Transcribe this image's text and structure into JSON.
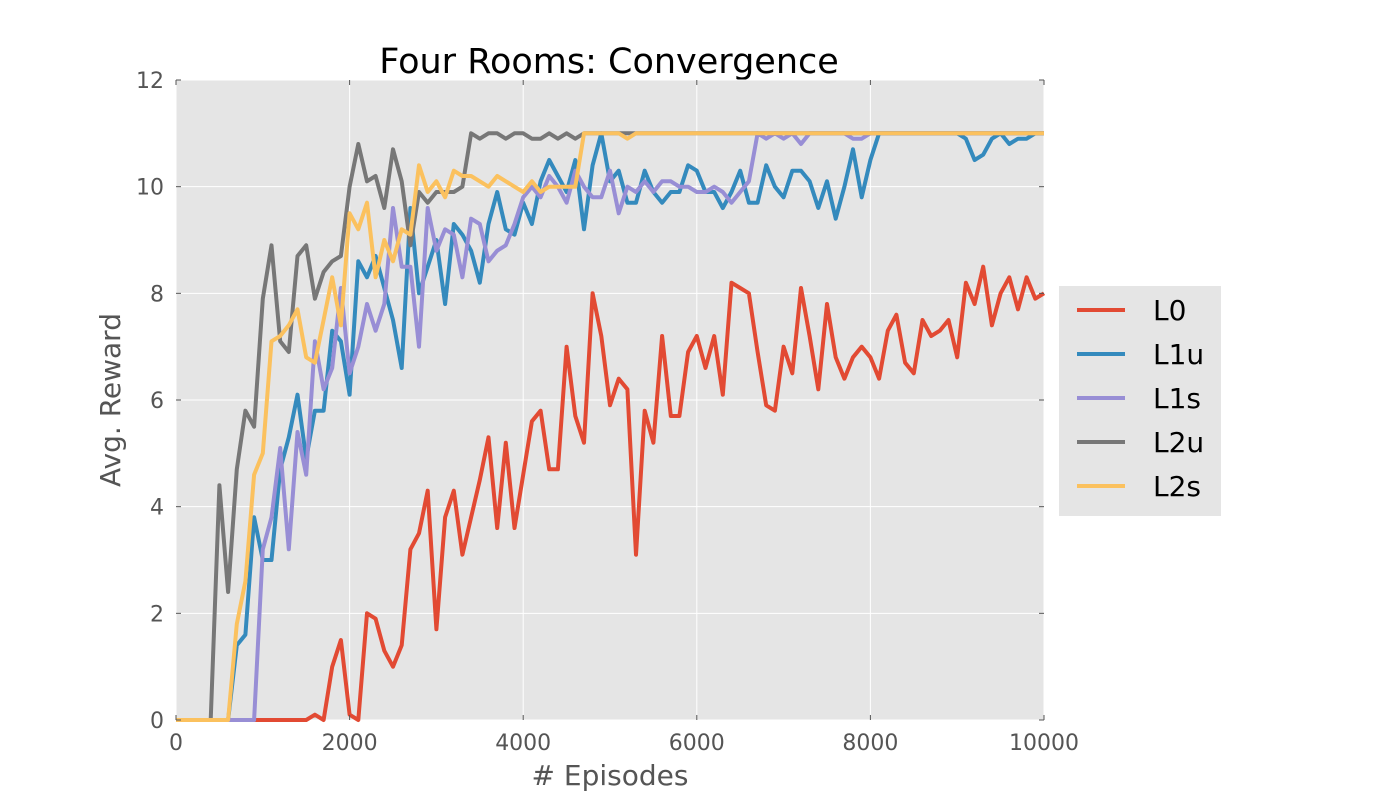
{
  "chart_data": {
    "type": "line",
    "title": "Four Rooms: Convergence",
    "xlabel": "# Episodes",
    "ylabel": "Avg. Reward",
    "xlim": [
      0,
      10000
    ],
    "ylim": [
      0,
      12
    ],
    "xticks": [
      0,
      2000,
      4000,
      6000,
      8000,
      10000
    ],
    "yticks": [
      0,
      2,
      4,
      6,
      8,
      10,
      12
    ],
    "grid": true,
    "legend_position": "center-right, outside plot",
    "x": [
      0,
      100,
      200,
      300,
      400,
      500,
      600,
      700,
      800,
      900,
      1000,
      1100,
      1200,
      1300,
      1400,
      1500,
      1600,
      1700,
      1800,
      1900,
      2000,
      2100,
      2200,
      2300,
      2400,
      2500,
      2600,
      2700,
      2800,
      2900,
      3000,
      3100,
      3200,
      3300,
      3400,
      3500,
      3600,
      3700,
      3800,
      3900,
      4000,
      4100,
      4200,
      4300,
      4400,
      4500,
      4600,
      4700,
      4800,
      4900,
      5000,
      5100,
      5200,
      5300,
      5400,
      5500,
      5600,
      5700,
      5800,
      5900,
      6000,
      6100,
      6200,
      6300,
      6400,
      6500,
      6600,
      6700,
      6800,
      6900,
      7000,
      7100,
      7200,
      7300,
      7400,
      7500,
      7600,
      7700,
      7800,
      7900,
      8000,
      8100,
      8200,
      8300,
      8400,
      8500,
      8600,
      8700,
      8800,
      8900,
      9000,
      9100,
      9200,
      9300,
      9400,
      9500,
      9600,
      9700,
      9800,
      9900,
      10000
    ],
    "series": [
      {
        "name": "L0",
        "color": "#e24a33",
        "values": [
          0,
          0,
          0,
          0,
          0,
          0,
          0,
          0,
          0,
          0,
          0,
          0,
          0,
          0,
          0,
          0,
          0.1,
          0,
          1,
          1.5,
          0.1,
          0,
          2,
          1.9,
          1.3,
          1,
          1.4,
          3.2,
          3.5,
          4.3,
          1.7,
          3.8,
          4.3,
          3.1,
          3.8,
          4.5,
          5.3,
          3.6,
          5.2,
          3.6,
          4.6,
          5.6,
          5.8,
          4.7,
          4.7,
          7,
          5.7,
          5.2,
          8,
          7.2,
          5.9,
          6.4,
          6.2,
          3.1,
          5.8,
          5.2,
          7.2,
          5.7,
          5.7,
          6.9,
          7.2,
          6.6,
          7.2,
          6.1,
          8.2,
          8.1,
          8,
          6.9,
          5.9,
          5.8,
          7,
          6.5,
          8.1,
          7.2,
          6.2,
          7.8,
          6.8,
          6.4,
          6.8,
          7,
          6.8,
          6.4,
          7.3,
          7.6,
          6.7,
          6.5,
          7.5,
          7.2,
          7.3,
          7.5,
          6.8,
          8.2,
          7.8,
          8.5,
          7.4,
          8,
          8.3,
          7.7,
          8.3,
          7.9,
          8
        ]
      },
      {
        "name": "L1u",
        "color": "#348abd",
        "values": [
          0,
          0,
          0,
          0,
          0,
          0,
          0,
          1.4,
          1.6,
          3.8,
          3,
          3,
          4.7,
          5.3,
          6.1,
          4.9,
          5.8,
          5.8,
          7.3,
          7.1,
          6.1,
          8.6,
          8.3,
          8.7,
          8.1,
          7.5,
          6.6,
          9.6,
          8,
          8.5,
          9,
          7.8,
          9.3,
          9.1,
          8.8,
          8.2,
          9.3,
          9.9,
          9.2,
          9.1,
          9.7,
          9.3,
          10.1,
          10.5,
          10.2,
          9.9,
          10.5,
          9.2,
          10.4,
          11,
          10.1,
          10.3,
          9.7,
          9.7,
          10.3,
          9.9,
          9.7,
          9.9,
          9.9,
          10.4,
          10.3,
          9.9,
          9.9,
          9.6,
          9.9,
          10.3,
          9.7,
          9.7,
          10.4,
          10,
          9.8,
          10.3,
          10.3,
          10.1,
          9.6,
          10.1,
          9.4,
          10,
          10.7,
          9.8,
          10.5,
          11,
          11,
          11,
          11,
          11,
          11,
          11,
          11,
          11,
          11,
          10.9,
          10.5,
          10.6,
          10.9,
          11,
          10.8,
          10.9,
          10.9,
          11,
          11
        ]
      },
      {
        "name": "L1s",
        "color": "#988ed5",
        "values": [
          0,
          0,
          0,
          0,
          0,
          0,
          0,
          0,
          0,
          0,
          3.2,
          3.8,
          5.1,
          3.2,
          5.4,
          4.6,
          7.1,
          6.2,
          6.6,
          8.1,
          6.5,
          7,
          7.8,
          7.3,
          7.8,
          9.6,
          8.5,
          8.5,
          7,
          9.6,
          8.8,
          9.2,
          9.1,
          8.3,
          9.4,
          9.3,
          8.6,
          8.8,
          8.9,
          9.3,
          9.8,
          10,
          9.8,
          10.2,
          10,
          9.7,
          10.3,
          10,
          9.8,
          9.8,
          10.3,
          9.5,
          10,
          9.9,
          10.1,
          9.9,
          10.1,
          10.1,
          10,
          10,
          9.9,
          9.9,
          10,
          9.9,
          9.7,
          9.9,
          10.1,
          11,
          10.9,
          11,
          10.9,
          11,
          10.8,
          11,
          11,
          11,
          11,
          11,
          10.9,
          10.9,
          11,
          11,
          11,
          11,
          11,
          11,
          11,
          11,
          11,
          11,
          11,
          11,
          11,
          11,
          11,
          11,
          11,
          11,
          11,
          11,
          11
        ]
      },
      {
        "name": "L2u",
        "color": "#777777",
        "values": [
          0,
          0,
          0,
          0,
          0,
          4.4,
          2.4,
          4.7,
          5.8,
          5.5,
          7.9,
          8.9,
          7.1,
          6.9,
          8.7,
          8.9,
          7.9,
          8.4,
          8.6,
          8.7,
          10,
          10.8,
          10.1,
          10.2,
          9.6,
          10.7,
          10.1,
          8.9,
          9.9,
          9.7,
          9.9,
          9.9,
          9.9,
          10,
          11,
          10.9,
          11,
          11,
          10.9,
          11,
          11,
          10.9,
          10.9,
          11,
          10.9,
          11,
          10.9,
          11,
          11,
          11,
          11,
          11,
          11,
          11,
          11,
          11,
          11,
          11,
          11,
          11,
          11,
          11,
          11,
          11,
          11,
          11,
          11,
          11,
          11,
          11,
          11,
          11,
          11,
          11,
          11,
          11,
          11,
          11,
          11,
          11,
          11,
          11,
          11,
          11,
          11,
          11,
          11,
          11,
          11,
          11,
          11,
          11,
          11,
          11,
          11,
          11,
          11,
          11,
          11,
          11,
          11
        ]
      },
      {
        "name": "L2s",
        "color": "#fbc15e",
        "values": [
          0,
          0,
          0,
          0,
          0,
          0,
          0,
          1.8,
          2.6,
          4.6,
          5,
          7.1,
          7.2,
          7.4,
          7.7,
          6.8,
          6.7,
          7.5,
          8.3,
          7.4,
          9.5,
          9.2,
          9.7,
          8.3,
          9,
          8.6,
          9.2,
          9.1,
          10.4,
          9.9,
          10.1,
          9.8,
          10.3,
          10.2,
          10.2,
          10.1,
          10,
          10.2,
          10.1,
          10,
          9.9,
          10.1,
          9.9,
          10,
          10,
          10,
          10,
          11,
          11,
          11,
          11,
          11,
          10.9,
          11,
          11,
          11,
          11,
          11,
          11,
          11,
          11,
          11,
          11,
          11,
          11,
          11,
          11,
          11,
          11,
          11,
          11,
          11,
          11,
          11,
          11,
          11,
          11,
          11,
          11,
          11,
          11,
          11,
          11,
          11,
          11,
          11,
          11,
          11,
          11,
          11,
          11,
          11,
          11,
          11,
          11,
          11,
          11,
          11,
          11,
          11,
          11
        ]
      }
    ]
  }
}
